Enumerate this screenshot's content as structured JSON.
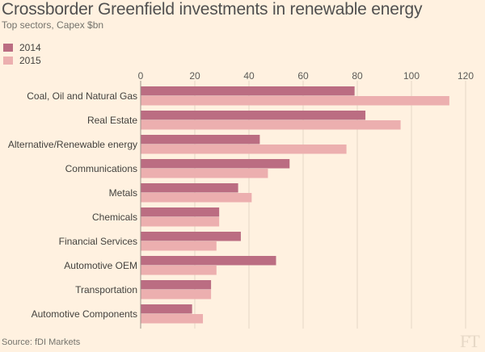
{
  "header": {
    "title": "Crossborder Greenfield investments in renewable energy",
    "subtitle": "Top sectors, Capex $bn"
  },
  "footer": {
    "source": "Source: fDI Markets",
    "logo": "FT"
  },
  "colors": {
    "background": "#fff1e0",
    "series_2014": "#bb6d82",
    "series_2015": "#ecafaf",
    "gridline": "#e6d8c6"
  },
  "chart_data": {
    "type": "bar",
    "orientation": "horizontal",
    "title": "Crossborder Greenfield investments in renewable energy",
    "subtitle": "Top sectors, Capex $bn",
    "categories": [
      "Coal, Oil and Natural Gas",
      "Real Estate",
      "Alternative/Renewable energy",
      "Communications",
      "Metals",
      "Chemicals",
      "Financial Services",
      "Automotive OEM",
      "Transportation",
      "Automotive Components"
    ],
    "series": [
      {
        "name": "2014",
        "color": "#bb6d82",
        "values": [
          79,
          83,
          44,
          55,
          36,
          29,
          37,
          50,
          26,
          19
        ]
      },
      {
        "name": "2015",
        "color": "#ecafaf",
        "values": [
          114,
          96,
          76,
          47,
          41,
          29,
          28,
          28,
          26,
          23
        ]
      }
    ],
    "xlim": [
      0,
      120
    ],
    "xticks": [
      0,
      20,
      40,
      60,
      80,
      100,
      120
    ],
    "xaxis_position": "top",
    "grid": true,
    "legend_position": "top-left"
  }
}
